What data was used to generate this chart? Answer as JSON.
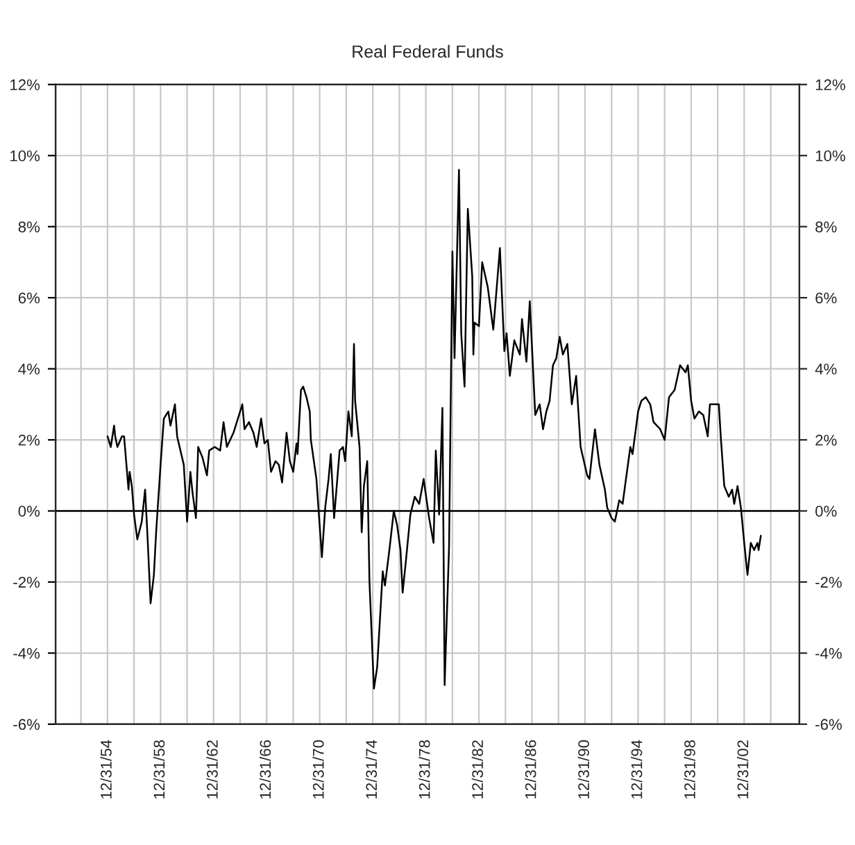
{
  "chart_data": {
    "type": "line",
    "title": "Real Federal Funds",
    "x": [
      "1955-01",
      "1955-04",
      "1955-07",
      "1955-08",
      "1955-10",
      "1956-02",
      "1956-04",
      "1956-08",
      "1956-09",
      "1956-11",
      "1957-01",
      "1957-04",
      "1957-08",
      "1957-11",
      "1958-01",
      "1958-04",
      "1958-07",
      "1958-09",
      "1959-01",
      "1959-04",
      "1959-08",
      "1959-10",
      "1960-02",
      "1960-04",
      "1960-07",
      "1960-10",
      "1961-01",
      "1961-04",
      "1961-06",
      "1961-09",
      "1961-11",
      "1962-03",
      "1962-07",
      "1962-09",
      "1963-02",
      "1963-07",
      "1963-10",
      "1964-01",
      "1964-07",
      "1964-10",
      "1965-03",
      "1965-05",
      "1965-09",
      "1966-01",
      "1966-04",
      "1966-08",
      "1966-11",
      "1967-02",
      "1967-05",
      "1967-09",
      "1967-12",
      "1968-03",
      "1968-07",
      "1968-10",
      "1969-01",
      "1969-04",
      "1969-05",
      "1969-08",
      "1969-10",
      "1970-01",
      "1970-04",
      "1970-05",
      "1970-10",
      "1971-03",
      "1971-06",
      "1971-09",
      "1971-11",
      "1972-02",
      "1972-07",
      "1972-10",
      "1972-12",
      "1973-03",
      "1973-06",
      "1973-08",
      "1973-09",
      "1974-01",
      "1974-03",
      "1974-05",
      "1974-08",
      "1974-10",
      "1975-02",
      "1975-05",
      "1975-10",
      "1975-12",
      "1976-04",
      "1976-08",
      "1976-11",
      "1977-02",
      "1977-04",
      "1977-07",
      "1977-11",
      "1978-03",
      "1978-07",
      "1978-11",
      "1979-04",
      "1979-08",
      "1979-10",
      "1980-01",
      "1980-04",
      "1980-06",
      "1980-10",
      "1981-01",
      "1981-03",
      "1981-07",
      "1981-09",
      "1981-12",
      "1982-03",
      "1982-07",
      "1982-08",
      "1982-09",
      "1983-01",
      "1983-04",
      "1983-09",
      "1984-02",
      "1984-08",
      "1984-12",
      "1985-02",
      "1985-05",
      "1985-09",
      "1986-02",
      "1986-04",
      "1986-08",
      "1986-11",
      "1987-04",
      "1987-08",
      "1987-11",
      "1988-02",
      "1988-05",
      "1988-08",
      "1988-11",
      "1989-02",
      "1989-05",
      "1989-09",
      "1990-01",
      "1990-05",
      "1990-09",
      "1991-03",
      "1991-05",
      "1991-10",
      "1992-02",
      "1992-07",
      "1992-09",
      "1993-01",
      "1993-04",
      "1993-08",
      "1993-11",
      "1994-02",
      "1994-06",
      "1994-08",
      "1995-01",
      "1995-04",
      "1995-08",
      "1995-12",
      "1996-03",
      "1996-09",
      "1997-01",
      "1997-05",
      "1997-10",
      "1998-03",
      "1998-08",
      "1998-10",
      "1999-01",
      "1999-04",
      "1999-08",
      "1999-12",
      "2000-04",
      "2000-06",
      "2000-10",
      "2001-02",
      "2001-04",
      "2001-07",
      "2001-11",
      "2002-02",
      "2002-04",
      "2002-07",
      "2002-10",
      "2003-01",
      "2003-04",
      "2003-07",
      "2003-10",
      "2004-01",
      "2004-02",
      "2004-04"
    ],
    "series": [
      {
        "color": "#000000",
        "values": [
          2.1,
          1.8,
          2.4,
          2.1,
          1.8,
          2.1,
          2.1,
          0.6,
          1.1,
          0.7,
          -0.1,
          -0.8,
          -0.3,
          0.6,
          -0.6,
          -2.6,
          -1.8,
          -0.6,
          1.3,
          2.6,
          2.8,
          2.4,
          3.0,
          2.1,
          1.7,
          1.3,
          -0.3,
          1.1,
          0.5,
          -0.2,
          1.8,
          1.5,
          1.0,
          1.7,
          1.8,
          1.7,
          2.5,
          1.8,
          2.2,
          2.5,
          3.0,
          2.3,
          2.5,
          2.2,
          1.8,
          2.6,
          1.9,
          2.0,
          1.1,
          1.4,
          1.3,
          0.8,
          2.2,
          1.4,
          1.1,
          1.9,
          1.6,
          3.4,
          3.5,
          3.2,
          2.8,
          2.0,
          0.9,
          -1.3,
          0.1,
          0.9,
          1.6,
          -0.2,
          1.7,
          1.8,
          1.4,
          2.8,
          2.1,
          4.7,
          3.1,
          1.8,
          -0.6,
          0.7,
          1.4,
          -2.0,
          -5.0,
          -4.4,
          -1.7,
          -2.1,
          -1.1,
          0.0,
          -0.4,
          -1.1,
          -2.3,
          -1.4,
          -0.1,
          0.4,
          0.2,
          0.9,
          -0.2,
          -0.9,
          1.7,
          -0.1,
          2.9,
          -4.9,
          -1.0,
          7.3,
          4.3,
          9.6,
          5.0,
          3.5,
          8.5,
          6.6,
          4.4,
          5.3,
          5.2,
          7.0,
          6.3,
          5.1,
          7.4,
          4.5,
          5.0,
          3.8,
          4.8,
          4.4,
          5.4,
          4.2,
          5.9,
          2.7,
          3.0,
          2.3,
          2.8,
          3.1,
          4.1,
          4.3,
          4.9,
          4.4,
          4.7,
          3.0,
          3.8,
          1.8,
          1.0,
          0.9,
          2.3,
          1.3,
          0.6,
          0.1,
          -0.2,
          -0.3,
          0.3,
          0.2,
          0.9,
          1.8,
          1.6,
          2.8,
          3.1,
          3.2,
          3.0,
          2.5,
          2.3,
          2.0,
          3.2,
          3.4,
          4.1,
          3.9,
          4.1,
          3.1,
          2.6,
          2.8,
          2.7,
          2.1,
          3.0,
          3.0,
          3.0,
          2.0,
          0.7,
          0.4,
          0.6,
          0.2,
          0.7,
          0.1,
          -0.9,
          -1.8,
          -0.9,
          -1.1,
          -0.9,
          -1.1,
          -0.7
        ]
      }
    ],
    "xlim": [
      "1951-02-01",
      "2007-03-01"
    ],
    "xticks": [
      {
        "value": "1952-12-31",
        "label": null
      },
      {
        "value": "1954-12-31",
        "label": "12/31/54"
      },
      {
        "value": "1956-12-31",
        "label": null
      },
      {
        "value": "1958-12-31",
        "label": "12/31/58"
      },
      {
        "value": "1960-12-31",
        "label": null
      },
      {
        "value": "1962-12-31",
        "label": "12/31/62"
      },
      {
        "value": "1964-12-31",
        "label": null
      },
      {
        "value": "1966-12-31",
        "label": "12/31/66"
      },
      {
        "value": "1968-12-31",
        "label": null
      },
      {
        "value": "1970-12-31",
        "label": "12/31/70"
      },
      {
        "value": "1972-12-31",
        "label": null
      },
      {
        "value": "1974-12-31",
        "label": "12/31/74"
      },
      {
        "value": "1976-12-31",
        "label": null
      },
      {
        "value": "1978-12-31",
        "label": "12/31/78"
      },
      {
        "value": "1980-12-31",
        "label": null
      },
      {
        "value": "1982-12-31",
        "label": "12/31/82"
      },
      {
        "value": "1984-12-31",
        "label": null
      },
      {
        "value": "1986-12-31",
        "label": "12/31/86"
      },
      {
        "value": "1988-12-31",
        "label": null
      },
      {
        "value": "1990-12-31",
        "label": "12/31/90"
      },
      {
        "value": "1992-12-31",
        "label": null
      },
      {
        "value": "1994-12-31",
        "label": "12/31/94"
      },
      {
        "value": "1996-12-31",
        "label": null
      },
      {
        "value": "1998-12-31",
        "label": "12/31/98"
      },
      {
        "value": "2000-12-31",
        "label": null
      },
      {
        "value": "2002-12-31",
        "label": "12/31/02"
      },
      {
        "value": "2004-12-31",
        "label": null
      }
    ],
    "ylim": [
      -6,
      12
    ],
    "yticks": [
      {
        "value": -6,
        "label": "-6%"
      },
      {
        "value": -4,
        "label": "-4%"
      },
      {
        "value": -2,
        "label": "-2%"
      },
      {
        "value": 0,
        "label": "0%"
      },
      {
        "value": 2,
        "label": "2%"
      },
      {
        "value": 4,
        "label": "4%"
      },
      {
        "value": 6,
        "label": "6%"
      },
      {
        "value": 8,
        "label": "8%"
      },
      {
        "value": 10,
        "label": "10%"
      },
      {
        "value": 12,
        "label": "12%"
      }
    ],
    "y2lim": [
      -6,
      12
    ],
    "y2ticks": [
      {
        "value": -6,
        "label": "-6%"
      },
      {
        "value": -4,
        "label": "-4%"
      },
      {
        "value": -2,
        "label": "-2%"
      },
      {
        "value": 0,
        "label": "0%"
      },
      {
        "value": 2,
        "label": "2%"
      },
      {
        "value": 4,
        "label": "4%"
      },
      {
        "value": 6,
        "label": "6%"
      },
      {
        "value": 8,
        "label": "8%"
      },
      {
        "value": 10,
        "label": "10%"
      },
      {
        "value": 12,
        "label": "12%"
      }
    ],
    "ref_lines": [
      {
        "axis": "y",
        "value": 0,
        "label": null,
        "color": "#000000"
      }
    ],
    "grid": true,
    "line_style": "solid",
    "marker": "none"
  }
}
